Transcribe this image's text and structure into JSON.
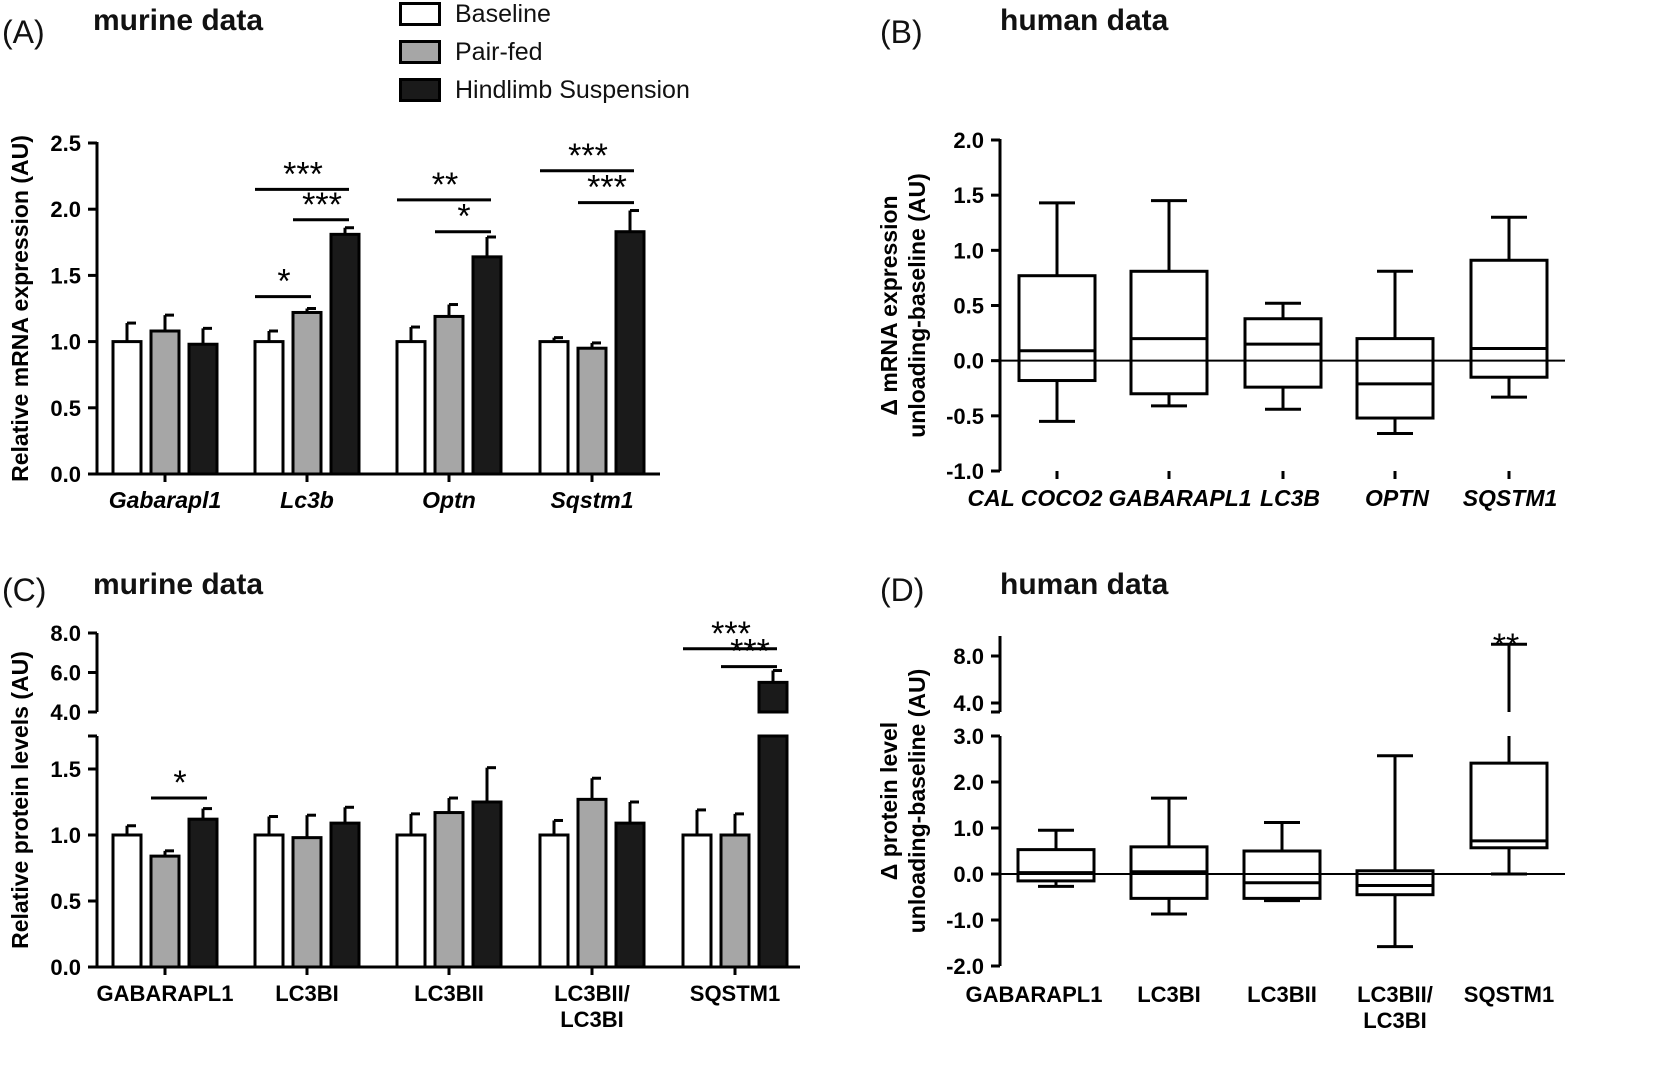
{
  "panels": {
    "A": {
      "letter": "(A)",
      "title": "murine data"
    },
    "B": {
      "letter": "(B)",
      "title": "human data"
    },
    "C": {
      "letter": "(C)",
      "title": "murine data"
    },
    "D": {
      "letter": "(D)",
      "title": "human data"
    }
  },
  "legend": {
    "items": [
      {
        "label": "Baseline",
        "color": "#ffffff"
      },
      {
        "label": "Pair-fed",
        "color": "#a6a6a6"
      },
      {
        "label": "Hindlimb Suspension",
        "color": "#1a1a1a"
      }
    ]
  },
  "colors": {
    "baseline": "#ffffff",
    "pair_fed": "#a6a6a6",
    "hindlimb": "#1a1a1a",
    "ink": "#000000"
  },
  "chart_data": [
    {
      "id": "A",
      "type": "bar",
      "title": "murine data",
      "ylabel": "Relative mRNA expression (AU)",
      "categories": [
        "Gabarapl1",
        "Lc3b",
        "Optn",
        "Sqstm1"
      ],
      "categories_italic": true,
      "ylim": [
        0,
        2.5
      ],
      "yticks": [
        "0.0",
        "0.5",
        "1.0",
        "1.5",
        "2.0",
        "2.5"
      ],
      "series": [
        {
          "name": "Baseline",
          "values": [
            1.0,
            1.0,
            1.0,
            1.0
          ],
          "errors": [
            0.14,
            0.08,
            0.11,
            0.03
          ]
        },
        {
          "name": "Pair-fed",
          "values": [
            1.08,
            1.22,
            1.19,
            0.95
          ],
          "errors": [
            0.12,
            0.03,
            0.09,
            0.04
          ]
        },
        {
          "name": "Hindlimb Suspension",
          "values": [
            0.98,
            1.81,
            1.64,
            1.83
          ],
          "errors": [
            0.12,
            0.05,
            0.15,
            0.16
          ]
        }
      ],
      "significance": [
        {
          "category": 1,
          "from": 0,
          "to": 1,
          "label": "*",
          "y": 1.34
        },
        {
          "category": 1,
          "from": 0,
          "to": 2,
          "label": "***",
          "y": 2.15
        },
        {
          "category": 1,
          "from": 1,
          "to": 2,
          "label": "***",
          "y": 1.92
        },
        {
          "category": 2,
          "from": 0,
          "to": 2,
          "label": "**",
          "y": 2.07
        },
        {
          "category": 2,
          "from": 1,
          "to": 2,
          "label": "*",
          "y": 1.83
        },
        {
          "category": 3,
          "from": 0,
          "to": 2,
          "label": "***",
          "y": 2.29
        },
        {
          "category": 3,
          "from": 1,
          "to": 2,
          "label": "***",
          "y": 2.05
        }
      ]
    },
    {
      "id": "B",
      "type": "box",
      "title": "human data",
      "ylabel_lines": [
        "Δ mRNA expression",
        "unloading-baseline (AU)"
      ],
      "categories": [
        "CALCOCO2",
        "GABARAPL1",
        "LC3B",
        "OPTN",
        "SQSTM1"
      ],
      "category_labels": [
        "CAL COCO2",
        "GABARAPL1",
        "LC3B",
        "OPTN",
        "SQSTM1"
      ],
      "categories_italic": true,
      "ylim": [
        -1.0,
        2.0
      ],
      "yticks": [
        "-1.0",
        "-0.5",
        "0.0",
        "0.5",
        "1.0",
        "1.5",
        "2.0"
      ],
      "zero_line": true,
      "boxes": [
        {
          "min": -0.55,
          "q1": -0.18,
          "median": 0.09,
          "q3": 0.77,
          "max": 1.43
        },
        {
          "min": -0.41,
          "q1": -0.3,
          "median": 0.2,
          "q3": 0.81,
          "max": 1.45
        },
        {
          "min": -0.44,
          "q1": -0.24,
          "median": 0.15,
          "q3": 0.38,
          "max": 0.52
        },
        {
          "min": -0.66,
          "q1": -0.52,
          "median": -0.21,
          "q3": 0.2,
          "max": 0.81
        },
        {
          "min": -0.33,
          "q1": -0.15,
          "median": 0.11,
          "q3": 0.91,
          "max": 1.3
        }
      ]
    },
    {
      "id": "C",
      "type": "bar",
      "title": "murine data",
      "ylabel": "Relative protein levels (AU)",
      "categories": [
        "GABARAPL1",
        "LC3BI",
        "LC3BII",
        "LC3BII/\nLC3BI",
        "SQSTM1"
      ],
      "category_labels": [
        [
          "GABARAPL1"
        ],
        [
          "LC3BI"
        ],
        [
          "LC3BII"
        ],
        [
          "LC3BII/",
          "LC3BI"
        ],
        [
          "SQSTM1"
        ]
      ],
      "broken_axis": true,
      "ylim_lower": [
        0,
        1.75
      ],
      "ylim_upper": [
        4.0,
        8.0
      ],
      "yticks_lower": [
        "0.0",
        "0.5",
        "1.0",
        "1.5"
      ],
      "yticks_upper": [
        "4.0",
        "6.0",
        "8.0"
      ],
      "series": [
        {
          "name": "Baseline",
          "values": [
            1.0,
            1.0,
            1.0,
            1.0,
            1.0
          ],
          "errors": [
            0.07,
            0.14,
            0.16,
            0.11,
            0.19
          ]
        },
        {
          "name": "Pair-fed",
          "values": [
            0.84,
            0.98,
            1.17,
            1.27,
            1.0
          ],
          "errors": [
            0.04,
            0.17,
            0.11,
            0.16,
            0.16
          ]
        },
        {
          "name": "Hindlimb Suspension",
          "values": [
            1.12,
            1.09,
            1.25,
            1.09,
            5.5
          ],
          "errors": [
            0.08,
            0.12,
            0.26,
            0.16,
            0.6
          ]
        }
      ],
      "significance": [
        {
          "category": 0,
          "from": 1,
          "to": 2,
          "label": "*",
          "y": 1.28
        },
        {
          "category": 4,
          "from": 0,
          "to": 2,
          "label": "***",
          "y": 7.2
        },
        {
          "category": 4,
          "from": 1,
          "to": 2,
          "label": "***",
          "y": 6.3
        }
      ]
    },
    {
      "id": "D",
      "type": "box",
      "title": "human data",
      "ylabel_lines": [
        "Δ protein level",
        "unloading-baseline (AU)"
      ],
      "categories": [
        "GABARAPL1",
        "LC3BI",
        "LC3BII",
        "LC3BII/\nLC3BI",
        "SQSTM1"
      ],
      "category_labels": [
        [
          "GABARAPL1"
        ],
        [
          "LC3BI"
        ],
        [
          "LC3BII"
        ],
        [
          "LC3BII/",
          "LC3BI"
        ],
        [
          "SQSTM1"
        ]
      ],
      "broken_axis": true,
      "ylim_lower": [
        -2.0,
        3.0
      ],
      "ylim_upper": [
        3.0,
        9.5
      ],
      "yticks_lower": [
        "-2.0",
        "-1.0",
        "0.0",
        "1.0",
        "2.0",
        "3.0"
      ],
      "yticks_upper": [
        "4.0",
        "8.0"
      ],
      "zero_line": true,
      "boxes": [
        {
          "min": -0.27,
          "q1": -0.15,
          "median": 0.03,
          "q3": 0.53,
          "max": 0.95
        },
        {
          "min": -0.87,
          "q1": -0.53,
          "median": 0.05,
          "q3": 0.59,
          "max": 1.65
        },
        {
          "min": -0.58,
          "q1": -0.53,
          "median": -0.19,
          "q3": 0.5,
          "max": 1.12
        },
        {
          "min": -1.58,
          "q1": -0.45,
          "median": -0.25,
          "q3": 0.07,
          "max": 2.57
        },
        {
          "min": 0.0,
          "q1": 0.57,
          "median": 0.72,
          "q3": 2.41,
          "max": 9.0
        }
      ],
      "significance": [
        {
          "category": 4,
          "label": "**"
        }
      ]
    }
  ]
}
